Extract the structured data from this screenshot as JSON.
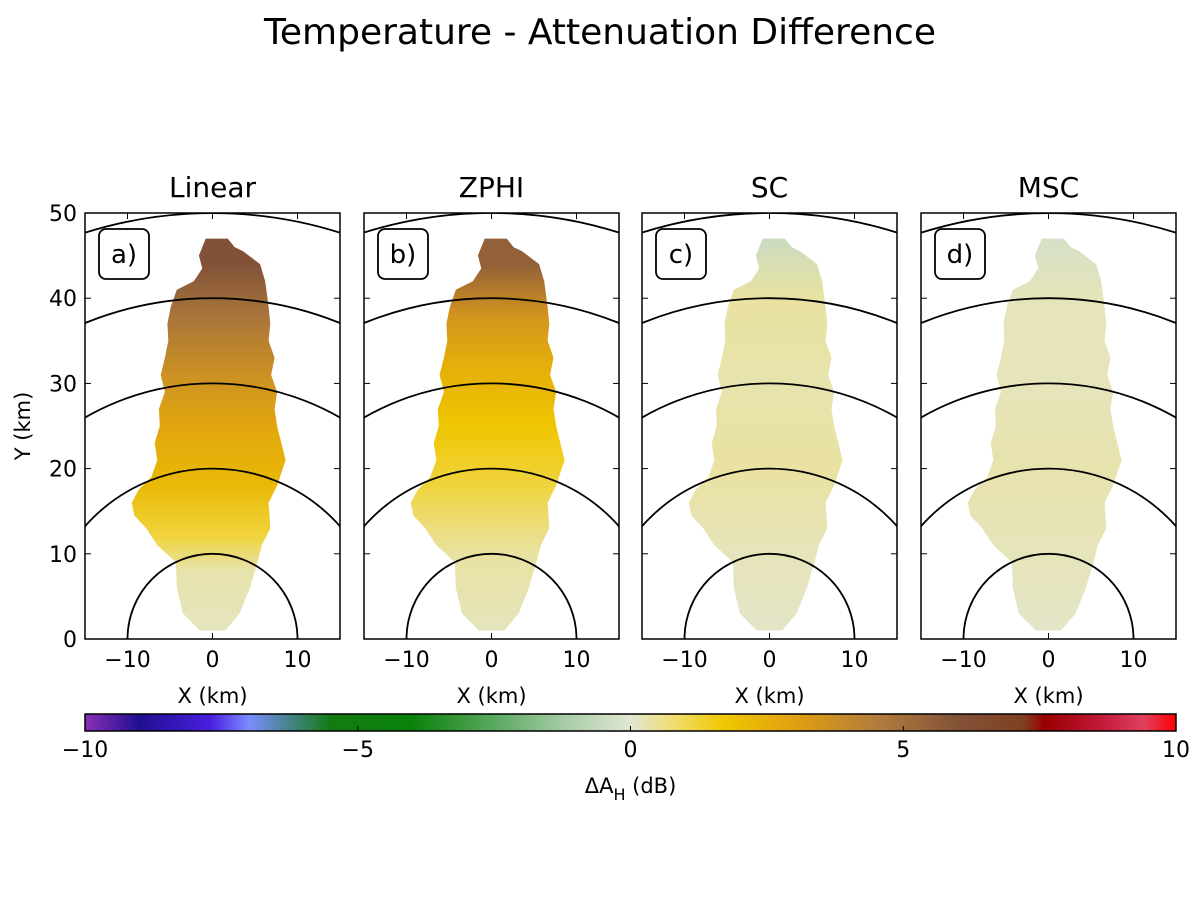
{
  "title": "Temperature - Attenuation Difference",
  "chart_data": [
    {
      "type": "heatmap",
      "panel_title": "Linear",
      "panel_label": "a)",
      "xlabel": "X (km)",
      "ylabel": "Y (km)",
      "xlim": [
        -15,
        15
      ],
      "ylim": [
        0,
        50
      ],
      "xticks": [
        -10,
        0,
        10
      ],
      "yticks": [
        0,
        10,
        20,
        30,
        40,
        50
      ],
      "range_rings_km": [
        10,
        20,
        30,
        40,
        50
      ],
      "value_profile": [
        [
          2,
          0.2
        ],
        [
          8,
          0.3
        ],
        [
          12,
          1.2
        ],
        [
          18,
          2.2
        ],
        [
          25,
          2.8
        ],
        [
          32,
          3.8
        ],
        [
          38,
          4.8
        ],
        [
          44,
          6.0
        ],
        [
          47,
          6.0
        ]
      ]
    },
    {
      "type": "heatmap",
      "panel_title": "ZPHI",
      "panel_label": "b)",
      "xlabel": "X (km)",
      "xlim": [
        -15,
        15
      ],
      "ylim": [
        0,
        50
      ],
      "xticks": [
        -10,
        0,
        10
      ],
      "range_rings_km": [
        10,
        20,
        30,
        40,
        50
      ],
      "value_profile": [
        [
          2,
          0.2
        ],
        [
          10,
          0.4
        ],
        [
          18,
          1.2
        ],
        [
          25,
          1.8
        ],
        [
          32,
          2.5
        ],
        [
          38,
          3.5
        ],
        [
          44,
          5.5
        ],
        [
          47,
          5.5
        ]
      ]
    },
    {
      "type": "heatmap",
      "panel_title": "SC",
      "panel_label": "c)",
      "xlabel": "X (km)",
      "xlim": [
        -15,
        15
      ],
      "ylim": [
        0,
        50
      ],
      "xticks": [
        -10,
        0,
        10
      ],
      "range_rings_km": [
        10,
        20,
        30,
        40,
        50
      ],
      "value_profile": [
        [
          2,
          0.1
        ],
        [
          10,
          0.2
        ],
        [
          20,
          0.4
        ],
        [
          30,
          0.3
        ],
        [
          40,
          0.4
        ],
        [
          47,
          -0.5
        ]
      ]
    },
    {
      "type": "heatmap",
      "panel_title": "MSC",
      "panel_label": "d)",
      "xlabel": "X (km)",
      "xlim": [
        -15,
        15
      ],
      "ylim": [
        0,
        50
      ],
      "xticks": [
        -10,
        0,
        10
      ],
      "range_rings_km": [
        10,
        20,
        30,
        40,
        50
      ],
      "value_profile": [
        [
          2,
          0.1
        ],
        [
          10,
          0.2
        ],
        [
          20,
          0.3
        ],
        [
          30,
          0.2
        ],
        [
          40,
          0.2
        ],
        [
          47,
          -0.3
        ]
      ]
    }
  ],
  "colorbar": {
    "label_prefix": "ΔA",
    "label_sub": "H",
    "label_suffix": " (dB)",
    "vmin": -10,
    "vmax": 10,
    "ticks": [
      -10,
      -5,
      0,
      5,
      10
    ],
    "tick_labels": [
      "−10",
      "−5",
      "0",
      "5",
      "10"
    ],
    "stops": [
      [
        -10,
        "#8a2fb5"
      ],
      [
        -9,
        "#200f90"
      ],
      [
        -7.7,
        "#4a1fe0"
      ],
      [
        -7,
        "#7a8cff"
      ],
      [
        -5.5,
        "#137a13"
      ],
      [
        -4,
        "#0a820a"
      ],
      [
        -2.5,
        "#5aa860"
      ],
      [
        -1.2,
        "#a8cca8"
      ],
      [
        0,
        "#e2e6d2"
      ],
      [
        0.8,
        "#f0dd70"
      ],
      [
        1.7,
        "#f0c800"
      ],
      [
        3,
        "#e0a010"
      ],
      [
        4.5,
        "#b27d3c"
      ],
      [
        6,
        "#825238"
      ],
      [
        7.2,
        "#804020"
      ],
      [
        7.6,
        "#980000"
      ],
      [
        8.6,
        "#c01838"
      ],
      [
        9.4,
        "#e04060"
      ],
      [
        10,
        "#ff0000"
      ]
    ]
  }
}
